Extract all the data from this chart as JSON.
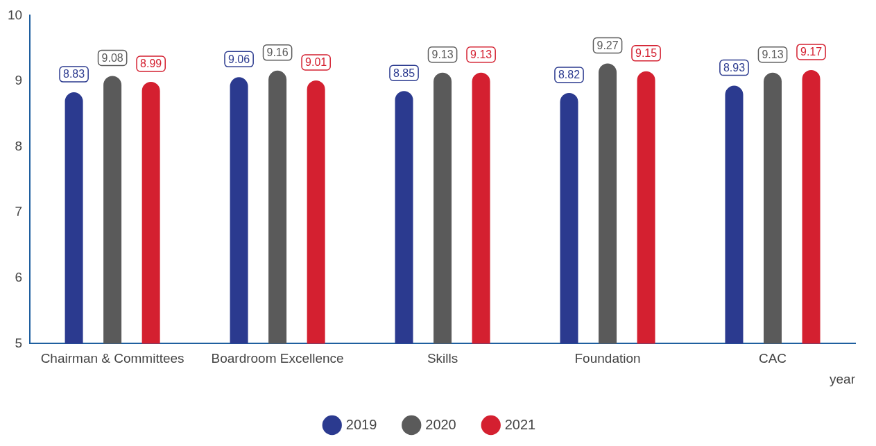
{
  "chart_data": {
    "type": "bar",
    "categories": [
      "Chairman & Committees",
      "Boardroom Excellence",
      "Skills",
      "Foundation",
      "CAC"
    ],
    "series": [
      {
        "name": "2019",
        "color": "#2b3a8f",
        "values": [
          8.83,
          9.06,
          8.85,
          8.82,
          8.93
        ]
      },
      {
        "name": "2020",
        "color": "#5a5a5a",
        "values": [
          9.08,
          9.16,
          9.13,
          9.27,
          9.13
        ]
      },
      {
        "name": "2021",
        "color": "#d42030",
        "values": [
          8.99,
          9.01,
          9.13,
          9.15,
          9.17
        ]
      }
    ],
    "xlabel": "year",
    "ylim": [
      5,
      10
    ],
    "yticks": [
      5,
      6,
      7,
      8,
      9,
      10
    ],
    "grid": false,
    "legend": "bottom",
    "data_labels": true
  }
}
